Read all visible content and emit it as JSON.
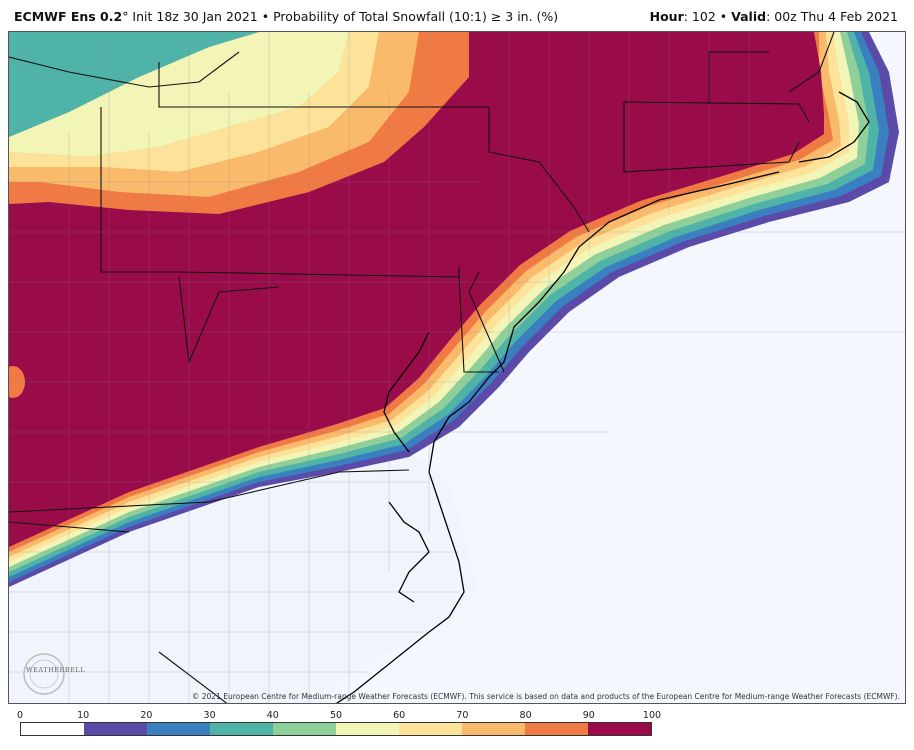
{
  "header": {
    "model": "ECMWF Ens 0.2",
    "degree": "°",
    "init": " Init 18z 30 Jan 2021",
    "sep": " • ",
    "product": "Probability of Total Snowfall (10:1)  ≥  3 in. (%)",
    "hour_label": "Hour",
    "hour_value": ": 102",
    "valid_label": "Valid",
    "valid_value": ": 00z Thu 4 Feb 2021"
  },
  "copyright": "© 2021 European Centre for Medium-range Weather Forecasts (ECMWF). This service is based on data and products of the European Centre for Medium-range Weather Forecasts (ECMWF).",
  "logo": "WEATHERBELL",
  "legend": {
    "ticks": [
      "0",
      "10",
      "20",
      "30",
      "40",
      "50",
      "60",
      "70",
      "80",
      "90",
      "100"
    ],
    "colors": [
      "#ffffff",
      "#5b4aa8",
      "#3a7fc0",
      "#4fb3a8",
      "#8fcf9a",
      "#f3f5b6",
      "#fde39a",
      "#f9bb6b",
      "#f07a43",
      "#9a0c49"
    ]
  },
  "colors": {
    "ocean": "#f4f7fd",
    "land_low": "#f0f4fc",
    "high": "#9a0c49"
  }
}
